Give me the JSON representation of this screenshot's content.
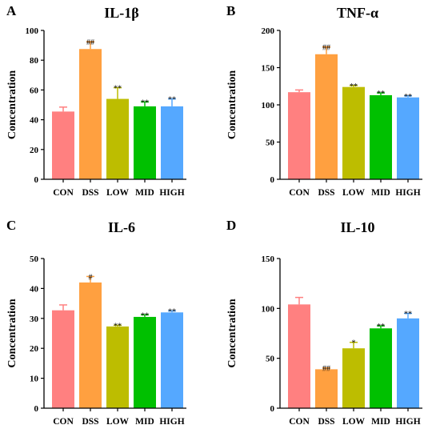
{
  "chart_data": [
    {
      "type": "bar",
      "panel": "A",
      "title": "IL-1β",
      "ylabel": "Concentration",
      "xlabel": "",
      "ylim": [
        0,
        100
      ],
      "yticks": [
        0,
        20,
        40,
        60,
        80,
        100
      ],
      "categories": [
        "CON",
        "DSS",
        "LOW",
        "MID",
        "HIGH"
      ],
      "values": [
        45.5,
        87.5,
        54,
        49,
        49
      ],
      "errors": [
        3,
        5,
        7.5,
        3,
        5
      ],
      "annotations": [
        "",
        "##",
        "**",
        "**",
        "**"
      ]
    },
    {
      "type": "bar",
      "panel": "B",
      "title": "TNF-α",
      "ylabel": "Concentration",
      "xlabel": "",
      "ylim": [
        0,
        200
      ],
      "yticks": [
        0,
        50,
        100,
        150,
        200
      ],
      "categories": [
        "CON",
        "DSS",
        "LOW",
        "MID",
        "HIGH"
      ],
      "values": [
        117,
        168,
        124,
        113,
        110
      ],
      "errors": [
        3,
        10,
        2,
        3,
        2
      ],
      "annotations": [
        "",
        "##",
        "**",
        "**",
        "**"
      ]
    },
    {
      "type": "bar",
      "panel": "C",
      "title": "IL-6",
      "ylabel": "Concentration",
      "xlabel": "",
      "ylim": [
        0,
        50
      ],
      "yticks": [
        0,
        10,
        20,
        30,
        40,
        50
      ],
      "categories": [
        "CON",
        "DSS",
        "LOW",
        "MID",
        "HIGH"
      ],
      "values": [
        32.7,
        42,
        27.3,
        30.5,
        32
      ],
      "errors": [
        1.8,
        2,
        0.4,
        0.7,
        0.5
      ],
      "annotations": [
        "",
        "#",
        "**",
        "**",
        "**"
      ]
    },
    {
      "type": "bar",
      "panel": "D",
      "title": "IL-10",
      "ylabel": "Concentration",
      "xlabel": "",
      "ylim": [
        0,
        150
      ],
      "yticks": [
        0,
        50,
        100,
        150
      ],
      "categories": [
        "CON",
        "DSS",
        "LOW",
        "MID",
        "HIGH"
      ],
      "values": [
        104,
        39,
        60,
        80,
        90
      ],
      "errors": [
        7,
        1.5,
        6,
        2.5,
        5
      ],
      "annotations": [
        "",
        "##",
        "*",
        "**",
        "**"
      ]
    }
  ],
  "colors": {
    "bars": [
      "#ff8080",
      "#ffa040",
      "#bdbd00",
      "#00c000",
      "#55a8ff"
    ],
    "axis": "#000000"
  }
}
